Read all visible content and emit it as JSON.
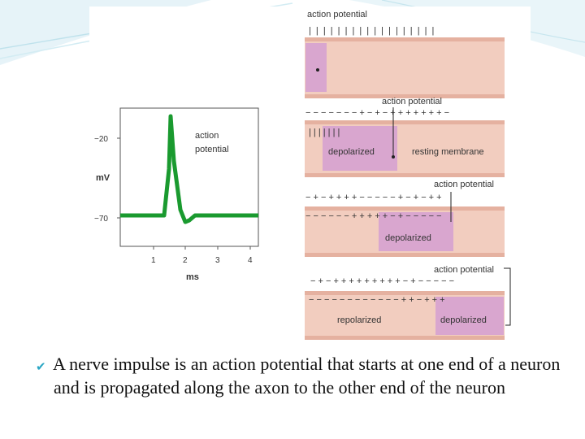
{
  "graph": {
    "y_tick_top": "−20",
    "y_tick_bottom": "−70",
    "y_unit": "mV",
    "x_ticks": [
      "1",
      "2",
      "3",
      "4"
    ],
    "x_unit": "ms",
    "annotation": [
      "action",
      "potential"
    ]
  },
  "axon_panels": {
    "panel1": {
      "callout": "action potential",
      "charges_outer": "| | | | | | | | | | | | | | | | | |"
    },
    "panel2": {
      "callout": "action potential",
      "charges_top": "− − − − − − − + − + − + + + + + + + −",
      "charges_inner": "| | | | | | |",
      "label_left": "depolarized",
      "label_right": "resting membrane"
    },
    "panel3": {
      "callout": "action potential",
      "charges_top": "− + − + + + + − − − − − + − + − + +",
      "charges_inner": "− − − − − − + + + + + − + − − − − −",
      "label": "depolarized"
    },
    "panel4": {
      "callout": "action potential",
      "charges_top": "− + − + + + + + + + + + − + − − − − −",
      "charges_inner": "− − − − − − − − − − − − + + − + + +",
      "label_left": "repolarized",
      "label_right": "depolarized"
    }
  },
  "caption": "A nerve impulse is an action potential that starts at one end of a neuron and is propagated along the axon to the other end of the neuron",
  "colors": {
    "accent_bullet": "#2aa6c4",
    "trace": "#1a9a2f",
    "membrane": "#f2cdbf",
    "depolarized_zone": "#d9a6cf"
  }
}
